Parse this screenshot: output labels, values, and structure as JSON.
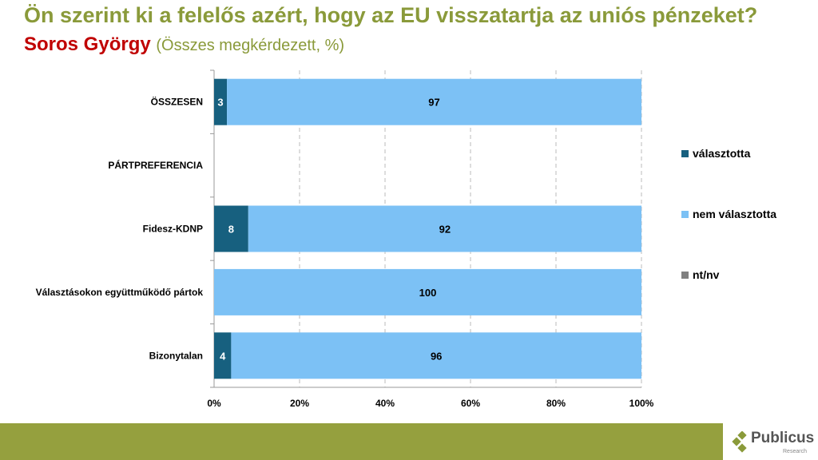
{
  "title": "Ön szerint ki a felelős azért, hogy az EU visszatartja az uniós pénzeket?",
  "subtitle": {
    "main": "Soros György",
    "note": "(Összes megkérdezett, %)"
  },
  "logo": {
    "name": "Publicus",
    "sub": "Research"
  },
  "chart_data": {
    "type": "bar",
    "orientation": "horizontal",
    "stacked": true,
    "categories": [
      "ÖSSZESEN",
      "PÁRTPREFERENCIA",
      "Fidesz-KDNP",
      "Választásokon együttműködő pártok",
      "Bizonytalan"
    ],
    "series": [
      {
        "name": "választotta",
        "color": "#17607f",
        "values": [
          3,
          null,
          8,
          0,
          4
        ]
      },
      {
        "name": "nem választotta",
        "color": "#7cc1f5",
        "values": [
          97,
          null,
          92,
          100,
          96
        ]
      },
      {
        "name": "nt/nv",
        "color": "#808080",
        "values": [
          0,
          null,
          0,
          0,
          0
        ]
      }
    ],
    "xlim": [
      0,
      100
    ],
    "xticks": [
      "0%",
      "20%",
      "40%",
      "60%",
      "80%",
      "100%"
    ],
    "grid": true,
    "legend": "right"
  }
}
